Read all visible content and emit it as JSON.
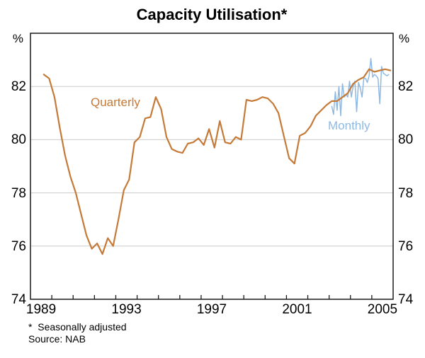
{
  "title": "Capacity Utilisation*",
  "footnotes": {
    "note": "*  Seasonally adjusted",
    "source": "Source: NAB"
  },
  "chart_data": {
    "type": "line",
    "title": "Capacity Utilisation*",
    "ylabel_left": "%",
    "ylabel_right": "%",
    "ylim": [
      74,
      84
    ],
    "yticks": [
      82,
      80,
      78,
      76,
      74
    ],
    "xlim": [
      1989,
      2006
    ],
    "xticks_labeled": [
      1989,
      1993,
      1997,
      2001,
      2005
    ],
    "xticks_minor_every_year": true,
    "grid": "horizontal",
    "colors": {
      "axis": "#1a1a1a",
      "grid": "#cbcbcb"
    },
    "series": [
      {
        "name": "Quarterly",
        "color": "#c57a38",
        "stroke_width": 2.2,
        "start": 1989.625,
        "step": 0.25,
        "values": [
          82.45,
          82.3,
          81.6,
          80.45,
          79.4,
          78.6,
          78.0,
          77.2,
          76.4,
          75.9,
          76.1,
          75.7,
          76.3,
          76.0,
          77.0,
          78.1,
          78.5,
          79.9,
          80.1,
          80.8,
          80.85,
          81.6,
          81.15,
          80.1,
          79.65,
          79.55,
          79.5,
          79.85,
          79.9,
          80.05,
          79.8,
          80.4,
          79.7,
          80.7,
          79.9,
          79.85,
          80.1,
          80.0,
          81.5,
          81.45,
          81.5,
          81.6,
          81.55,
          81.35,
          81.0,
          80.15,
          79.3,
          79.1,
          80.15,
          80.25,
          80.5,
          80.9,
          81.1,
          81.3,
          81.45,
          81.45,
          81.6,
          81.75,
          82.1,
          82.25,
          82.35,
          82.65,
          82.55,
          82.6,
          82.65,
          82.6
        ]
      },
      {
        "name": "Monthly",
        "color": "#8fb9e3",
        "stroke_width": 1.5,
        "start": 2003.125,
        "step": 0.0833333,
        "values": [
          81.25,
          80.95,
          81.8,
          81.1,
          82.0,
          80.9,
          82.1,
          81.6,
          81.7,
          81.6,
          82.2,
          81.6,
          82.0,
          82.2,
          81.05,
          82.15,
          81.95,
          81.6,
          82.3,
          82.3,
          82.15,
          82.4,
          83.05,
          82.35,
          82.45,
          82.4,
          82.3,
          81.35,
          82.75,
          82.5,
          82.45,
          82.4,
          82.45
        ]
      }
    ]
  }
}
